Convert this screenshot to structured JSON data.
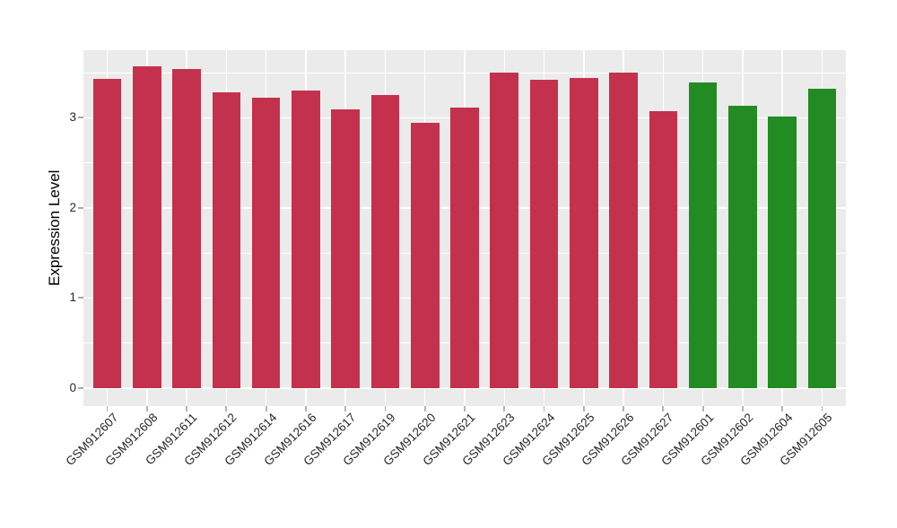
{
  "chart_data": {
    "type": "bar",
    "title": "",
    "xlabel": "",
    "ylabel": "Expression Level",
    "categories": [
      "GSM912607",
      "GSM912608",
      "GSM912611",
      "GSM912612",
      "GSM912614",
      "GSM912616",
      "GSM912617",
      "GSM912619",
      "GSM912620",
      "GSM912621",
      "GSM912623",
      "GSM912624",
      "GSM912625",
      "GSM912626",
      "GSM912627",
      "GSM912601",
      "GSM912602",
      "GSM912604",
      "GSM912605"
    ],
    "values": [
      3.43,
      3.57,
      3.54,
      3.28,
      3.22,
      3.3,
      3.09,
      3.25,
      2.94,
      3.11,
      3.5,
      3.42,
      3.44,
      3.5,
      3.07,
      3.39,
      3.13,
      3.01,
      3.32
    ],
    "groups": [
      "red",
      "red",
      "red",
      "red",
      "red",
      "red",
      "red",
      "red",
      "red",
      "red",
      "red",
      "red",
      "red",
      "red",
      "red",
      "green",
      "green",
      "green",
      "green"
    ],
    "colors": {
      "red": "#C4314D",
      "green": "#228B22"
    },
    "yticks": [
      0,
      1,
      2,
      3
    ],
    "yticks_minor": [
      0.5,
      1.5,
      2.5,
      3.5
    ],
    "ylim": [
      -0.2,
      3.75
    ],
    "grid": true,
    "legend": false,
    "panel_bg": "#EBEBEB",
    "grid_color": "#FFFFFF",
    "tick_color": "#A8A8A8",
    "axis_text_color": "#262626"
  }
}
